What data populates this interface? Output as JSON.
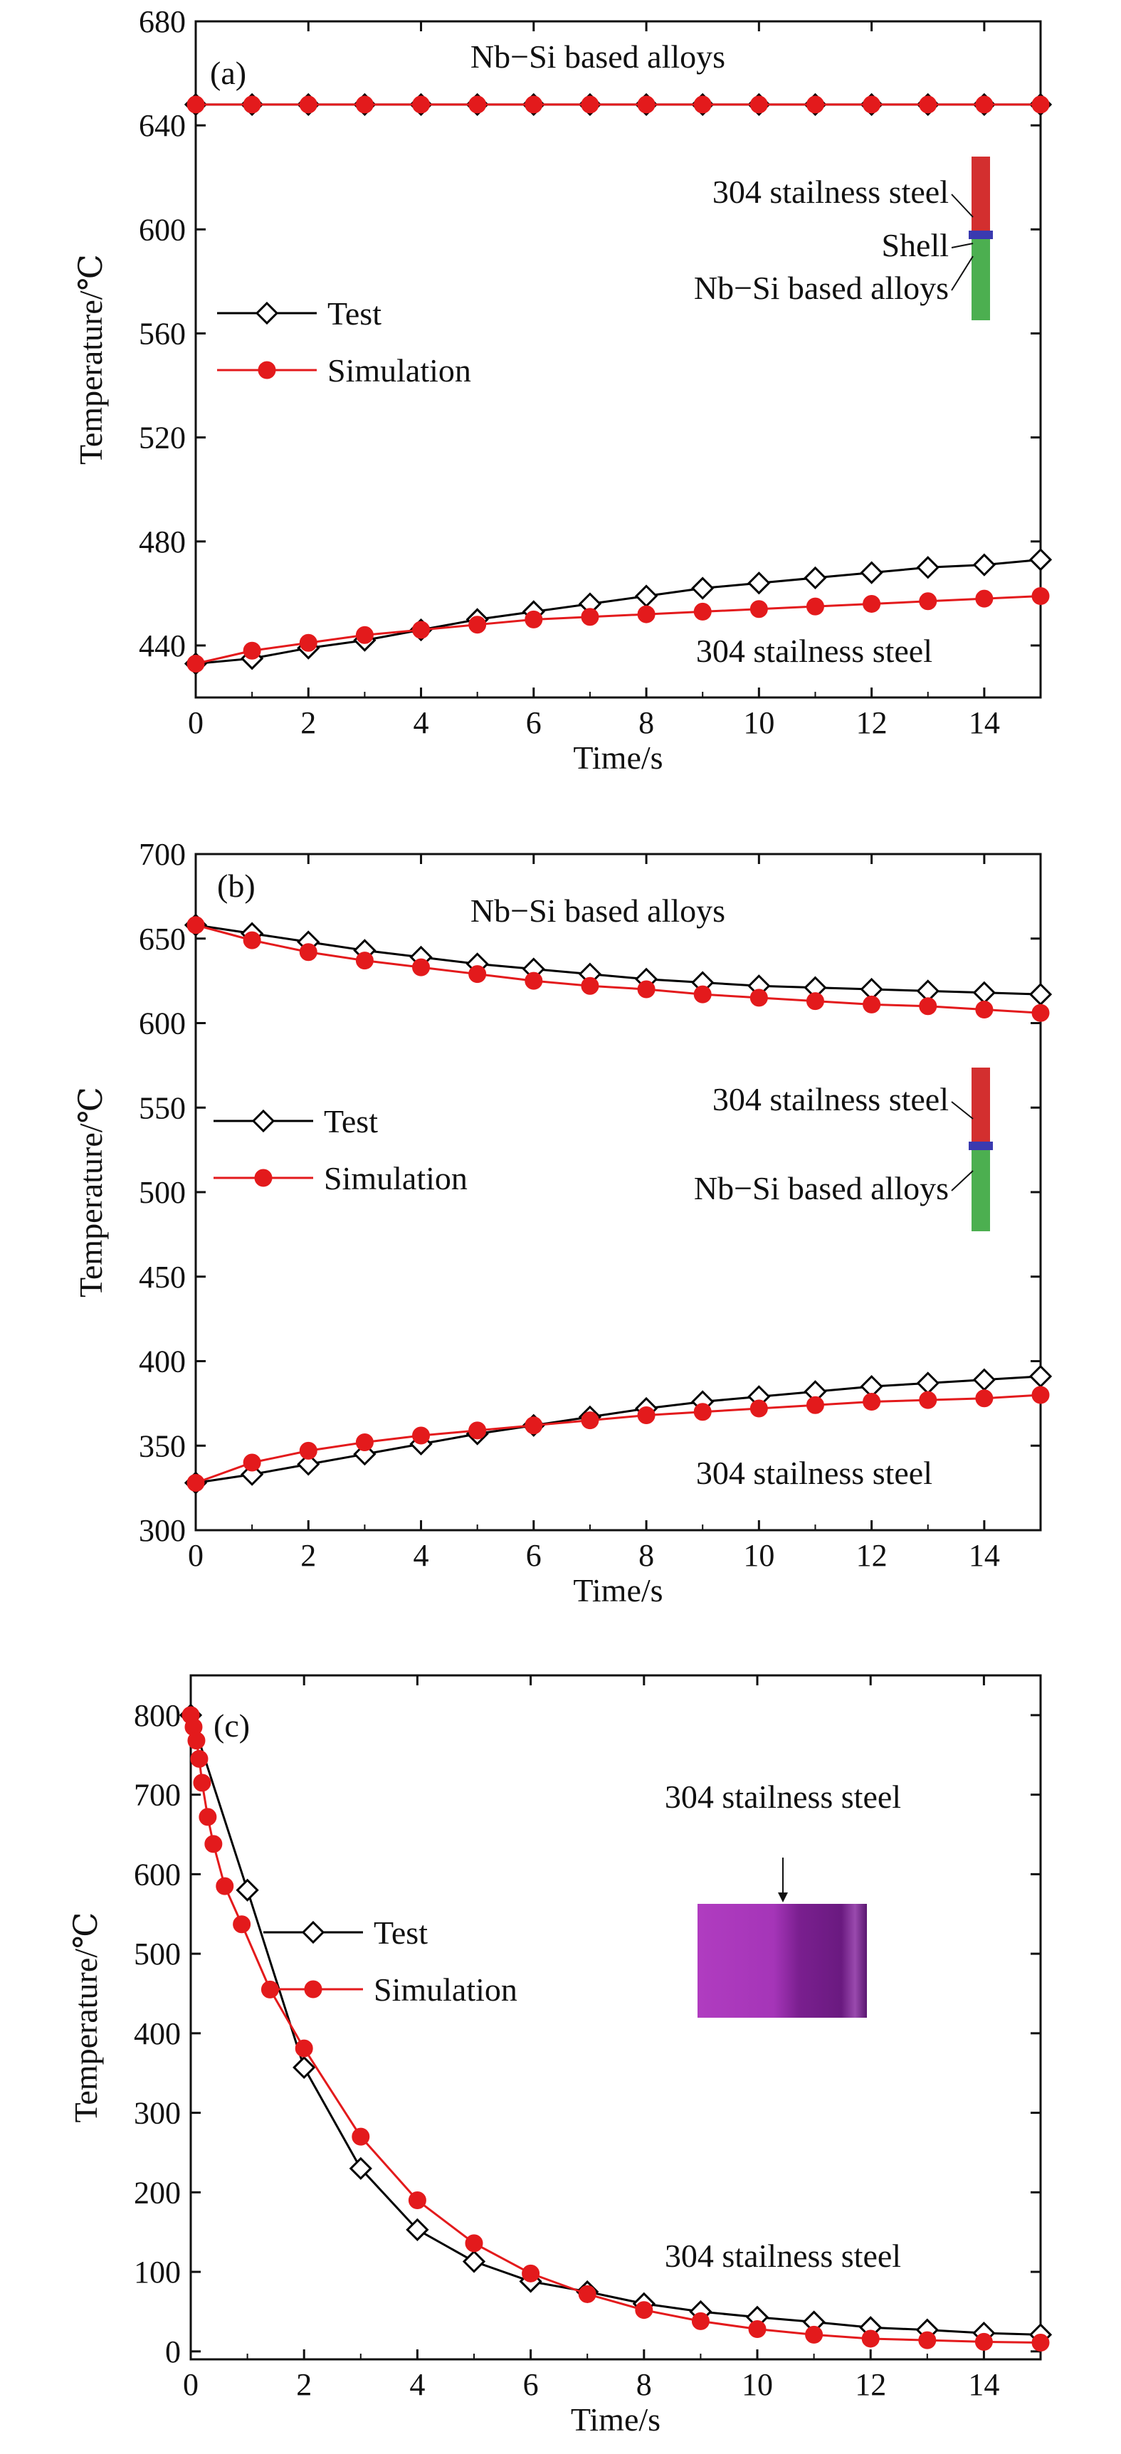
{
  "chart_data": [
    {
      "type": "line",
      "panel_label": "(a)",
      "xlabel": "Time/s",
      "ylabel": "Temperature/℃",
      "xlim": [
        0,
        15
      ],
      "ylim": [
        420,
        680
      ],
      "x_ticks": [
        0,
        2,
        4,
        6,
        8,
        10,
        12,
        14
      ],
      "y_ticks": [
        440,
        480,
        520,
        560,
        600,
        640,
        680
      ],
      "legend": [
        "Test",
        "Simulation"
      ],
      "legend_placement": "center-left",
      "annotations": [
        "Nb−Si based alloys",
        "304 stailness steel"
      ],
      "inset_labels": [
        "304 stailness steel",
        "Shell",
        "Nb−Si based alloys"
      ],
      "inset_colors": {
        "top": "#d32f2f",
        "band": "#3a3ab0",
        "bottom": "#4caf50"
      },
      "series": [
        {
          "name": "Test",
          "marker": "open-diamond",
          "color": "#000000",
          "group": "Nb−Si based alloys",
          "x": [
            0,
            1,
            2,
            3,
            4,
            5,
            6,
            7,
            8,
            9,
            10,
            11,
            12,
            13,
            14,
            15
          ],
          "y": [
            648,
            648,
            648,
            648,
            648,
            648,
            648,
            648,
            648,
            648,
            648,
            648,
            648,
            648,
            648,
            648
          ]
        },
        {
          "name": "Simulation",
          "marker": "filled-circle",
          "color": "#e31a1c",
          "group": "Nb−Si based alloys",
          "x": [
            0,
            1,
            2,
            3,
            4,
            5,
            6,
            7,
            8,
            9,
            10,
            11,
            12,
            13,
            14,
            15
          ],
          "y": [
            648,
            648,
            648,
            648,
            648,
            648,
            648,
            648,
            648,
            648,
            648,
            648,
            648,
            648,
            648,
            648
          ]
        },
        {
          "name": "Test",
          "marker": "open-diamond",
          "color": "#000000",
          "group": "304 stailness steel",
          "x": [
            0,
            1,
            2,
            3,
            4,
            5,
            6,
            7,
            8,
            9,
            10,
            11,
            12,
            13,
            14,
            15
          ],
          "y": [
            433,
            435,
            439,
            442,
            446,
            450,
            453,
            456,
            459,
            462,
            464,
            466,
            468,
            470,
            471,
            473
          ]
        },
        {
          "name": "Simulation",
          "marker": "filled-circle",
          "color": "#e31a1c",
          "group": "304 stailness steel",
          "x": [
            0,
            1,
            2,
            3,
            4,
            5,
            6,
            7,
            8,
            9,
            10,
            11,
            12,
            13,
            14,
            15
          ],
          "y": [
            433,
            438,
            441,
            444,
            446,
            448,
            450,
            451,
            452,
            453,
            454,
            455,
            456,
            457,
            458,
            459
          ]
        }
      ]
    },
    {
      "type": "line",
      "panel_label": "(b)",
      "xlabel": "Time/s",
      "ylabel": "Temperature/℃",
      "xlim": [
        0,
        15
      ],
      "ylim": [
        300,
        700
      ],
      "x_ticks": [
        0,
        2,
        4,
        6,
        8,
        10,
        12,
        14
      ],
      "y_ticks": [
        300,
        350,
        400,
        450,
        500,
        550,
        600,
        650,
        700
      ],
      "legend": [
        "Test",
        "Simulation"
      ],
      "legend_placement": "center-left",
      "annotations": [
        "Nb−Si based alloys",
        "304 stailness steel"
      ],
      "inset_labels": [
        "304 stailness steel",
        "Nb−Si based alloys"
      ],
      "inset_colors": {
        "top": "#d32f2f",
        "band": "#3a3ab0",
        "bottom": "#4caf50"
      },
      "series": [
        {
          "name": "Test",
          "marker": "open-diamond",
          "color": "#000000",
          "group": "Nb−Si based alloys",
          "x": [
            0,
            1,
            2,
            3,
            4,
            5,
            6,
            7,
            8,
            9,
            10,
            11,
            12,
            13,
            14,
            15
          ],
          "y": [
            658,
            653,
            648,
            643,
            639,
            635,
            632,
            629,
            626,
            624,
            622,
            621,
            620,
            619,
            618,
            617
          ]
        },
        {
          "name": "Simulation",
          "marker": "filled-circle",
          "color": "#e31a1c",
          "group": "Nb−Si based alloys",
          "x": [
            0,
            1,
            2,
            3,
            4,
            5,
            6,
            7,
            8,
            9,
            10,
            11,
            12,
            13,
            14,
            15
          ],
          "y": [
            658,
            649,
            642,
            637,
            633,
            629,
            625,
            622,
            620,
            617,
            615,
            613,
            611,
            610,
            608,
            606
          ]
        },
        {
          "name": "Test",
          "marker": "open-diamond",
          "color": "#000000",
          "group": "304 stailness steel",
          "x": [
            0,
            1,
            2,
            3,
            4,
            5,
            6,
            7,
            8,
            9,
            10,
            11,
            12,
            13,
            14,
            15
          ],
          "y": [
            328,
            333,
            339,
            345,
            351,
            357,
            362,
            367,
            372,
            376,
            379,
            382,
            385,
            387,
            389,
            391
          ]
        },
        {
          "name": "Simulation",
          "marker": "filled-circle",
          "color": "#e31a1c",
          "group": "304 stailness steel",
          "x": [
            0,
            1,
            2,
            3,
            4,
            5,
            6,
            7,
            8,
            9,
            10,
            11,
            12,
            13,
            14,
            15
          ],
          "y": [
            328,
            340,
            347,
            352,
            356,
            359,
            362,
            365,
            368,
            370,
            372,
            374,
            376,
            377,
            378,
            380
          ]
        }
      ]
    },
    {
      "type": "line",
      "panel_label": "(c)",
      "xlabel": "Time/s",
      "ylabel": "Temperature/℃",
      "xlim": [
        0,
        15
      ],
      "ylim": [
        -10,
        850
      ],
      "x_ticks": [
        0,
        2,
        4,
        6,
        8,
        10,
        12,
        14
      ],
      "y_ticks": [
        0,
        100,
        200,
        300,
        400,
        500,
        600,
        700,
        800
      ],
      "legend": [
        "Test",
        "Simulation"
      ],
      "legend_placement": "center-left",
      "annotations": [
        "304 stailness steel",
        "304 stailness steel"
      ],
      "inset_colors": {
        "left": "#b03cc0",
        "mid": "#7a1f8f",
        "right": "#5a1670"
      },
      "series": [
        {
          "name": "Test",
          "marker": "open-diamond",
          "color": "#000000",
          "x": [
            0,
            1,
            2,
            3,
            4,
            5,
            6,
            7,
            8,
            9,
            10,
            11,
            12,
            13,
            14,
            15
          ],
          "y": [
            800,
            580,
            357,
            230,
            153,
            113,
            88,
            75,
            60,
            50,
            43,
            37,
            30,
            27,
            23,
            21
          ]
        },
        {
          "name": "Simulation",
          "marker": "filled-circle",
          "color": "#e31a1c",
          "x": [
            0,
            0.05,
            0.1,
            0.15,
            0.2,
            0.3,
            0.4,
            0.6,
            0.9,
            1.4,
            2,
            3,
            4,
            5,
            6,
            7,
            8,
            9,
            10,
            11,
            12,
            13,
            14,
            15
          ],
          "y": [
            800,
            785,
            768,
            745,
            715,
            672,
            638,
            585,
            537,
            455,
            381,
            270,
            190,
            136,
            98,
            72,
            52,
            38,
            28,
            21,
            16,
            14,
            12,
            11
          ]
        }
      ]
    }
  ]
}
